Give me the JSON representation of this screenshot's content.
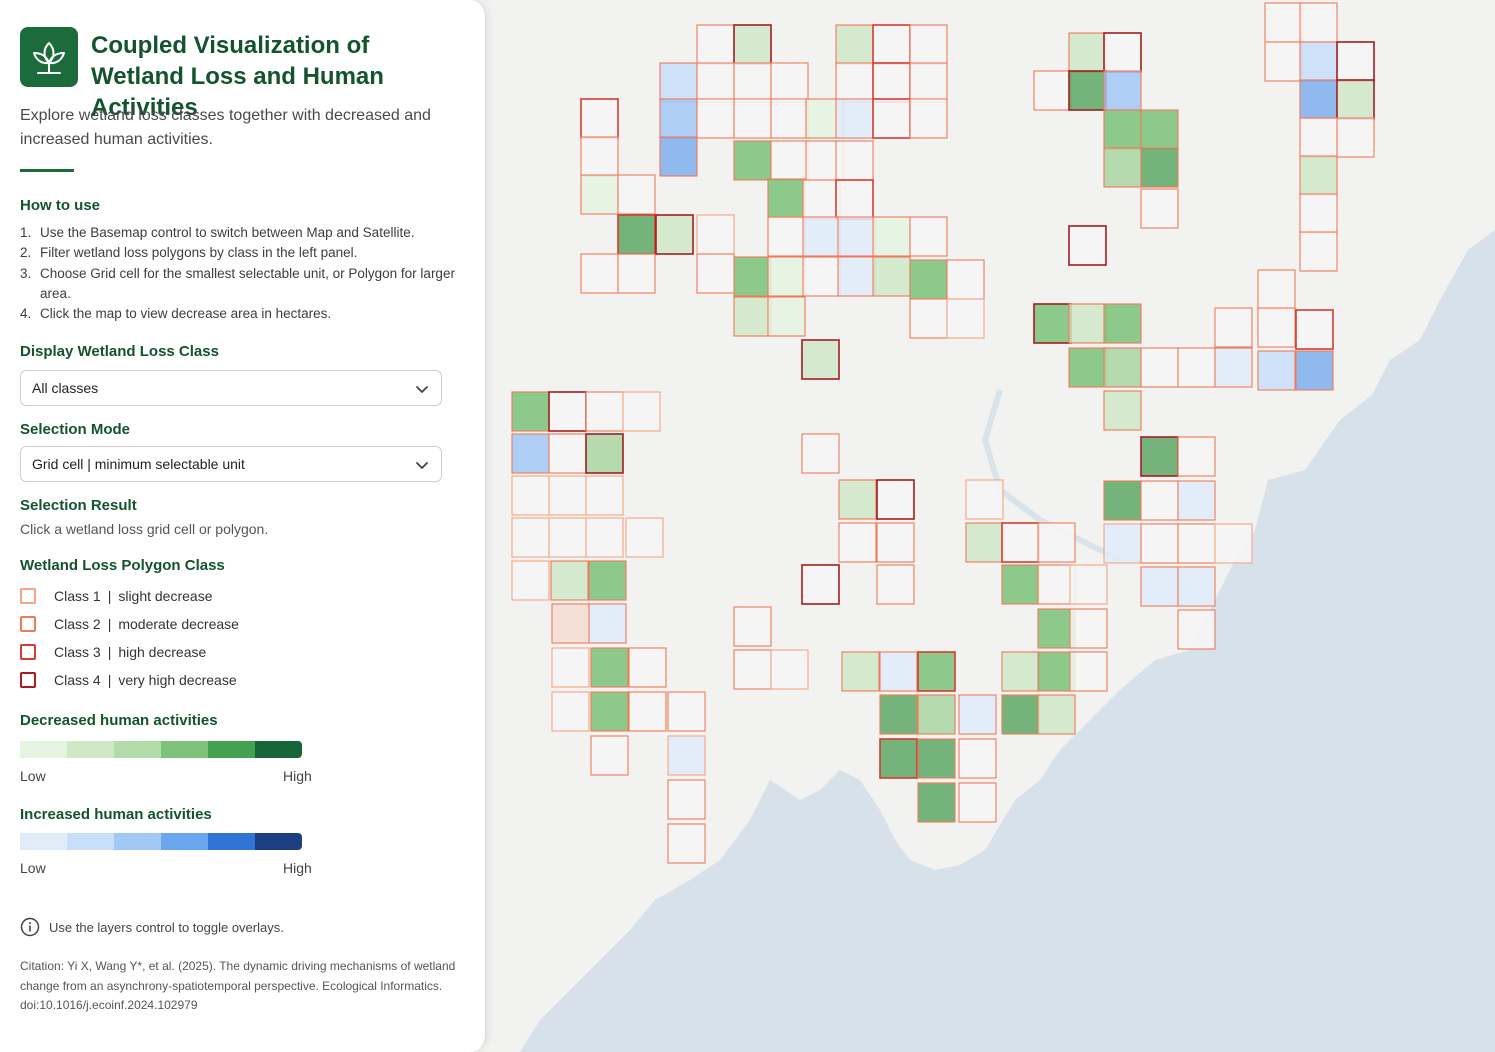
{
  "header": {
    "title_line1": "Coupled Visualization of",
    "title_line2": "Wetland Loss and Human Activities",
    "logo_icon": "sprout-icon",
    "brand_color": "#1c6b3a"
  },
  "intro": "Explore wetland loss classes together with decreased and increased human activities.",
  "how_to": {
    "title": "How to use",
    "steps": [
      {
        "num": "1.",
        "text": "Use the Basemap control to switch between Map and Satellite."
      },
      {
        "num": "2.",
        "text": "Filter wetland loss polygons by class in the left panel."
      },
      {
        "num": "3.",
        "text": "Choose Grid cell for the smallest selectable unit, or Polygon for larger area."
      },
      {
        "num": "4.",
        "text": "Click the map to view decrease area in hectares."
      }
    ]
  },
  "display_class": {
    "title": "Display Wetland Loss Class",
    "selected": "All classes"
  },
  "selection_mode": {
    "title": "Selection Mode",
    "selected": "Grid cell | minimum selectable unit"
  },
  "selection_result": {
    "title": "Selection Result",
    "text": "Click a wetland loss grid cell or polygon."
  },
  "polygon_legend": {
    "title": "Wetland Loss Polygon Class",
    "items": [
      {
        "name": "Class 1",
        "desc": "slight decrease",
        "color": "#f4a584"
      },
      {
        "name": "Class 2",
        "desc": "moderate decrease",
        "color": "#ef7a5a"
      },
      {
        "name": "Class 3",
        "desc": "high decrease",
        "color": "#d73b31"
      },
      {
        "name": "Class 4",
        "desc": "very high decrease",
        "color": "#a51d22"
      }
    ]
  },
  "decreased_legend": {
    "title": "Decreased human activities",
    "low": "Low",
    "high": "High",
    "colors": [
      "#e5f3e1",
      "#cfe8c8",
      "#b4dcaa",
      "#7cc27a",
      "#43a152",
      "#19653a"
    ]
  },
  "increased_legend": {
    "title": "Increased human activities",
    "low": "Low",
    "high": "High",
    "colors": [
      "#e1ecfa",
      "#c9defa",
      "#a2c8f6",
      "#6aa6ee",
      "#2f74d6",
      "#1b3f80"
    ]
  },
  "note": "Use the layers control to toggle overlays.",
  "citation": "Citation: Yi X, Wang Y*, et al. (2025). The dynamic driving mechanisms of wetland change from an asynchrony-spatiotemporal perspective. Ecological Informatics. doi:10.1016/j.ecoinf.2024.102979",
  "map": {
    "land_color": "#f2f2f1",
    "sea_color": "#d5e0ea",
    "grid_fill_opacity": 0.85
  }
}
